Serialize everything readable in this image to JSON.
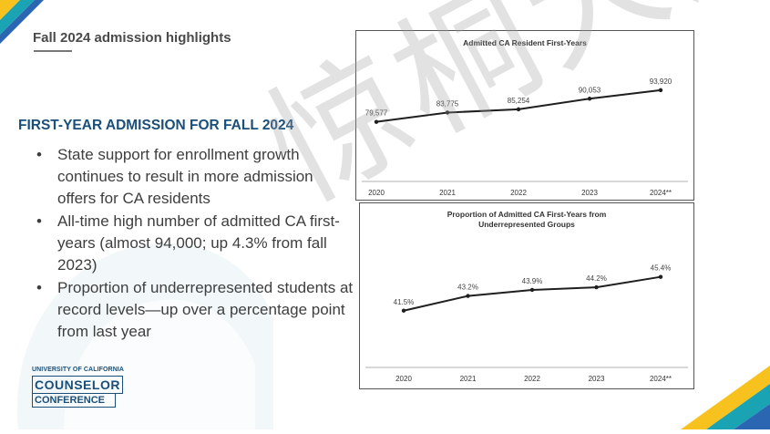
{
  "slide": {
    "title": "Fall 2024 admission highlights",
    "section_heading": "FIRST-YEAR ADMISSION FOR FALL 2024",
    "bullets": [
      "State support for enrollment growth continues to result in more admission offers for CA residents",
      "All-time high number of admitted CA first-years (almost 94,000; up 4.3% from fall 2023)",
      "Proportion of underrepresented students at record levels—up over a percentage point from last year"
    ],
    "bullet_glyph": "•"
  },
  "logo": {
    "top": "UNIVERSITY OF CALIFORNIA",
    "main": "COUNSELOR",
    "sub": "CONFERENCE",
    "color": "#1a4f7a"
  },
  "watermark": "惊桐大道",
  "colors": {
    "heading": "#1a4f7a",
    "line": "#1f1f1f",
    "accent_teal": "#1aa3b3",
    "accent_yellow": "#f7c11e",
    "accent_blue": "#2b66b3"
  },
  "chart_data": [
    {
      "type": "line",
      "title": "Admitted CA Resident First-Years",
      "categories": [
        "2020",
        "2021",
        "2022",
        "2023",
        "2024**"
      ],
      "values": [
        79577,
        83775,
        85254,
        90053,
        93920
      ],
      "labels": [
        "79,577",
        "83,775",
        "85,254",
        "90,053",
        "93,920"
      ],
      "ylim": [
        72000,
        98000
      ],
      "grid": false
    },
    {
      "type": "line",
      "title": "Proportion of Admitted CA First-Years from Underrepresented Groups",
      "title_lines": [
        "Proportion of Admitted CA First-Years from",
        "Underrepresented Groups"
      ],
      "categories": [
        "2020",
        "2021",
        "2022",
        "2023",
        "2024**"
      ],
      "values": [
        41.5,
        43.2,
        43.9,
        44.2,
        45.4
      ],
      "labels": [
        "41.5%",
        "43.2%",
        "43.9%",
        "44.2%",
        "45.4%"
      ],
      "ylim": [
        38,
        48
      ],
      "grid": false
    }
  ]
}
